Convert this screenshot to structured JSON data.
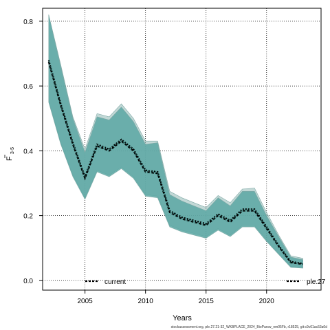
{
  "chart_data": {
    "type": "area",
    "xlabel": "Years",
    "ylabel_main": "F",
    "ylabel_sub": "3-5",
    "caption": "stockassessment.org, ple.27.21-32_WKBPLACE_2024_BioParsw_nm05Fb, r18525, git:c9c61ac53a0d",
    "xlim": [
      2001.5,
      2024.5
    ],
    "ylim": [
      -0.03,
      0.84
    ],
    "x_ticks": [
      2005,
      2010,
      2015,
      2020
    ],
    "y_ticks": [
      0.0,
      0.2,
      0.4,
      0.6,
      0.8
    ],
    "y_tick_labels": [
      "0.0",
      "0.2",
      "0.4",
      "0.6",
      "0.8"
    ],
    "grid": true,
    "legend": [
      {
        "label": "current",
        "position": "bottom-left",
        "color": "#000000"
      },
      {
        "label": "ple.27",
        "position": "bottom-right",
        "color": "#000000"
      }
    ],
    "colors": {
      "band_current": "#5aa7a3",
      "band_other": "#8fb8b4",
      "line": "#000000",
      "line_accent": "#2a7f7a"
    },
    "x": [
      2002,
      2003,
      2004,
      2005,
      2006,
      2007,
      2008,
      2009,
      2010,
      2011,
      2012,
      2013,
      2014,
      2015,
      2016,
      2017,
      2018,
      2019,
      2020,
      2021,
      2022,
      2023
    ],
    "series": [
      {
        "name": "current",
        "values": [
          0.675,
          0.54,
          0.42,
          0.315,
          0.415,
          0.4,
          0.43,
          0.4,
          0.335,
          0.33,
          0.21,
          0.19,
          0.18,
          0.17,
          0.2,
          0.18,
          0.215,
          0.215,
          0.16,
          0.105,
          0.055,
          0.05
        ],
        "lower": [
          0.55,
          0.42,
          0.32,
          0.25,
          0.335,
          0.32,
          0.345,
          0.315,
          0.26,
          0.255,
          0.165,
          0.15,
          0.14,
          0.13,
          0.155,
          0.135,
          0.165,
          0.165,
          0.12,
          0.08,
          0.04,
          0.038
        ],
        "upper": [
          0.82,
          0.66,
          0.5,
          0.395,
          0.505,
          0.495,
          0.535,
          0.49,
          0.42,
          0.425,
          0.265,
          0.245,
          0.23,
          0.215,
          0.255,
          0.23,
          0.275,
          0.275,
          0.2,
          0.135,
          0.072,
          0.064
        ]
      },
      {
        "name": "ple.27",
        "values": [
          0.68,
          0.545,
          0.425,
          0.32,
          0.42,
          0.405,
          0.435,
          0.405,
          0.34,
          0.335,
          0.215,
          0.195,
          0.185,
          0.175,
          0.205,
          0.185,
          0.22,
          0.22,
          0.165,
          0.108,
          0.058,
          0.052
        ],
        "lower": [
          0.555,
          0.425,
          0.325,
          0.255,
          0.34,
          0.325,
          0.35,
          0.32,
          0.265,
          0.26,
          0.17,
          0.155,
          0.145,
          0.135,
          0.16,
          0.14,
          0.17,
          0.17,
          0.125,
          0.083,
          0.043,
          0.04
        ],
        "upper": [
          0.82,
          0.665,
          0.505,
          0.405,
          0.515,
          0.505,
          0.545,
          0.5,
          0.43,
          0.43,
          0.275,
          0.255,
          0.24,
          0.225,
          0.262,
          0.24,
          0.282,
          0.285,
          0.21,
          0.14,
          0.076,
          0.068
        ]
      }
    ]
  }
}
